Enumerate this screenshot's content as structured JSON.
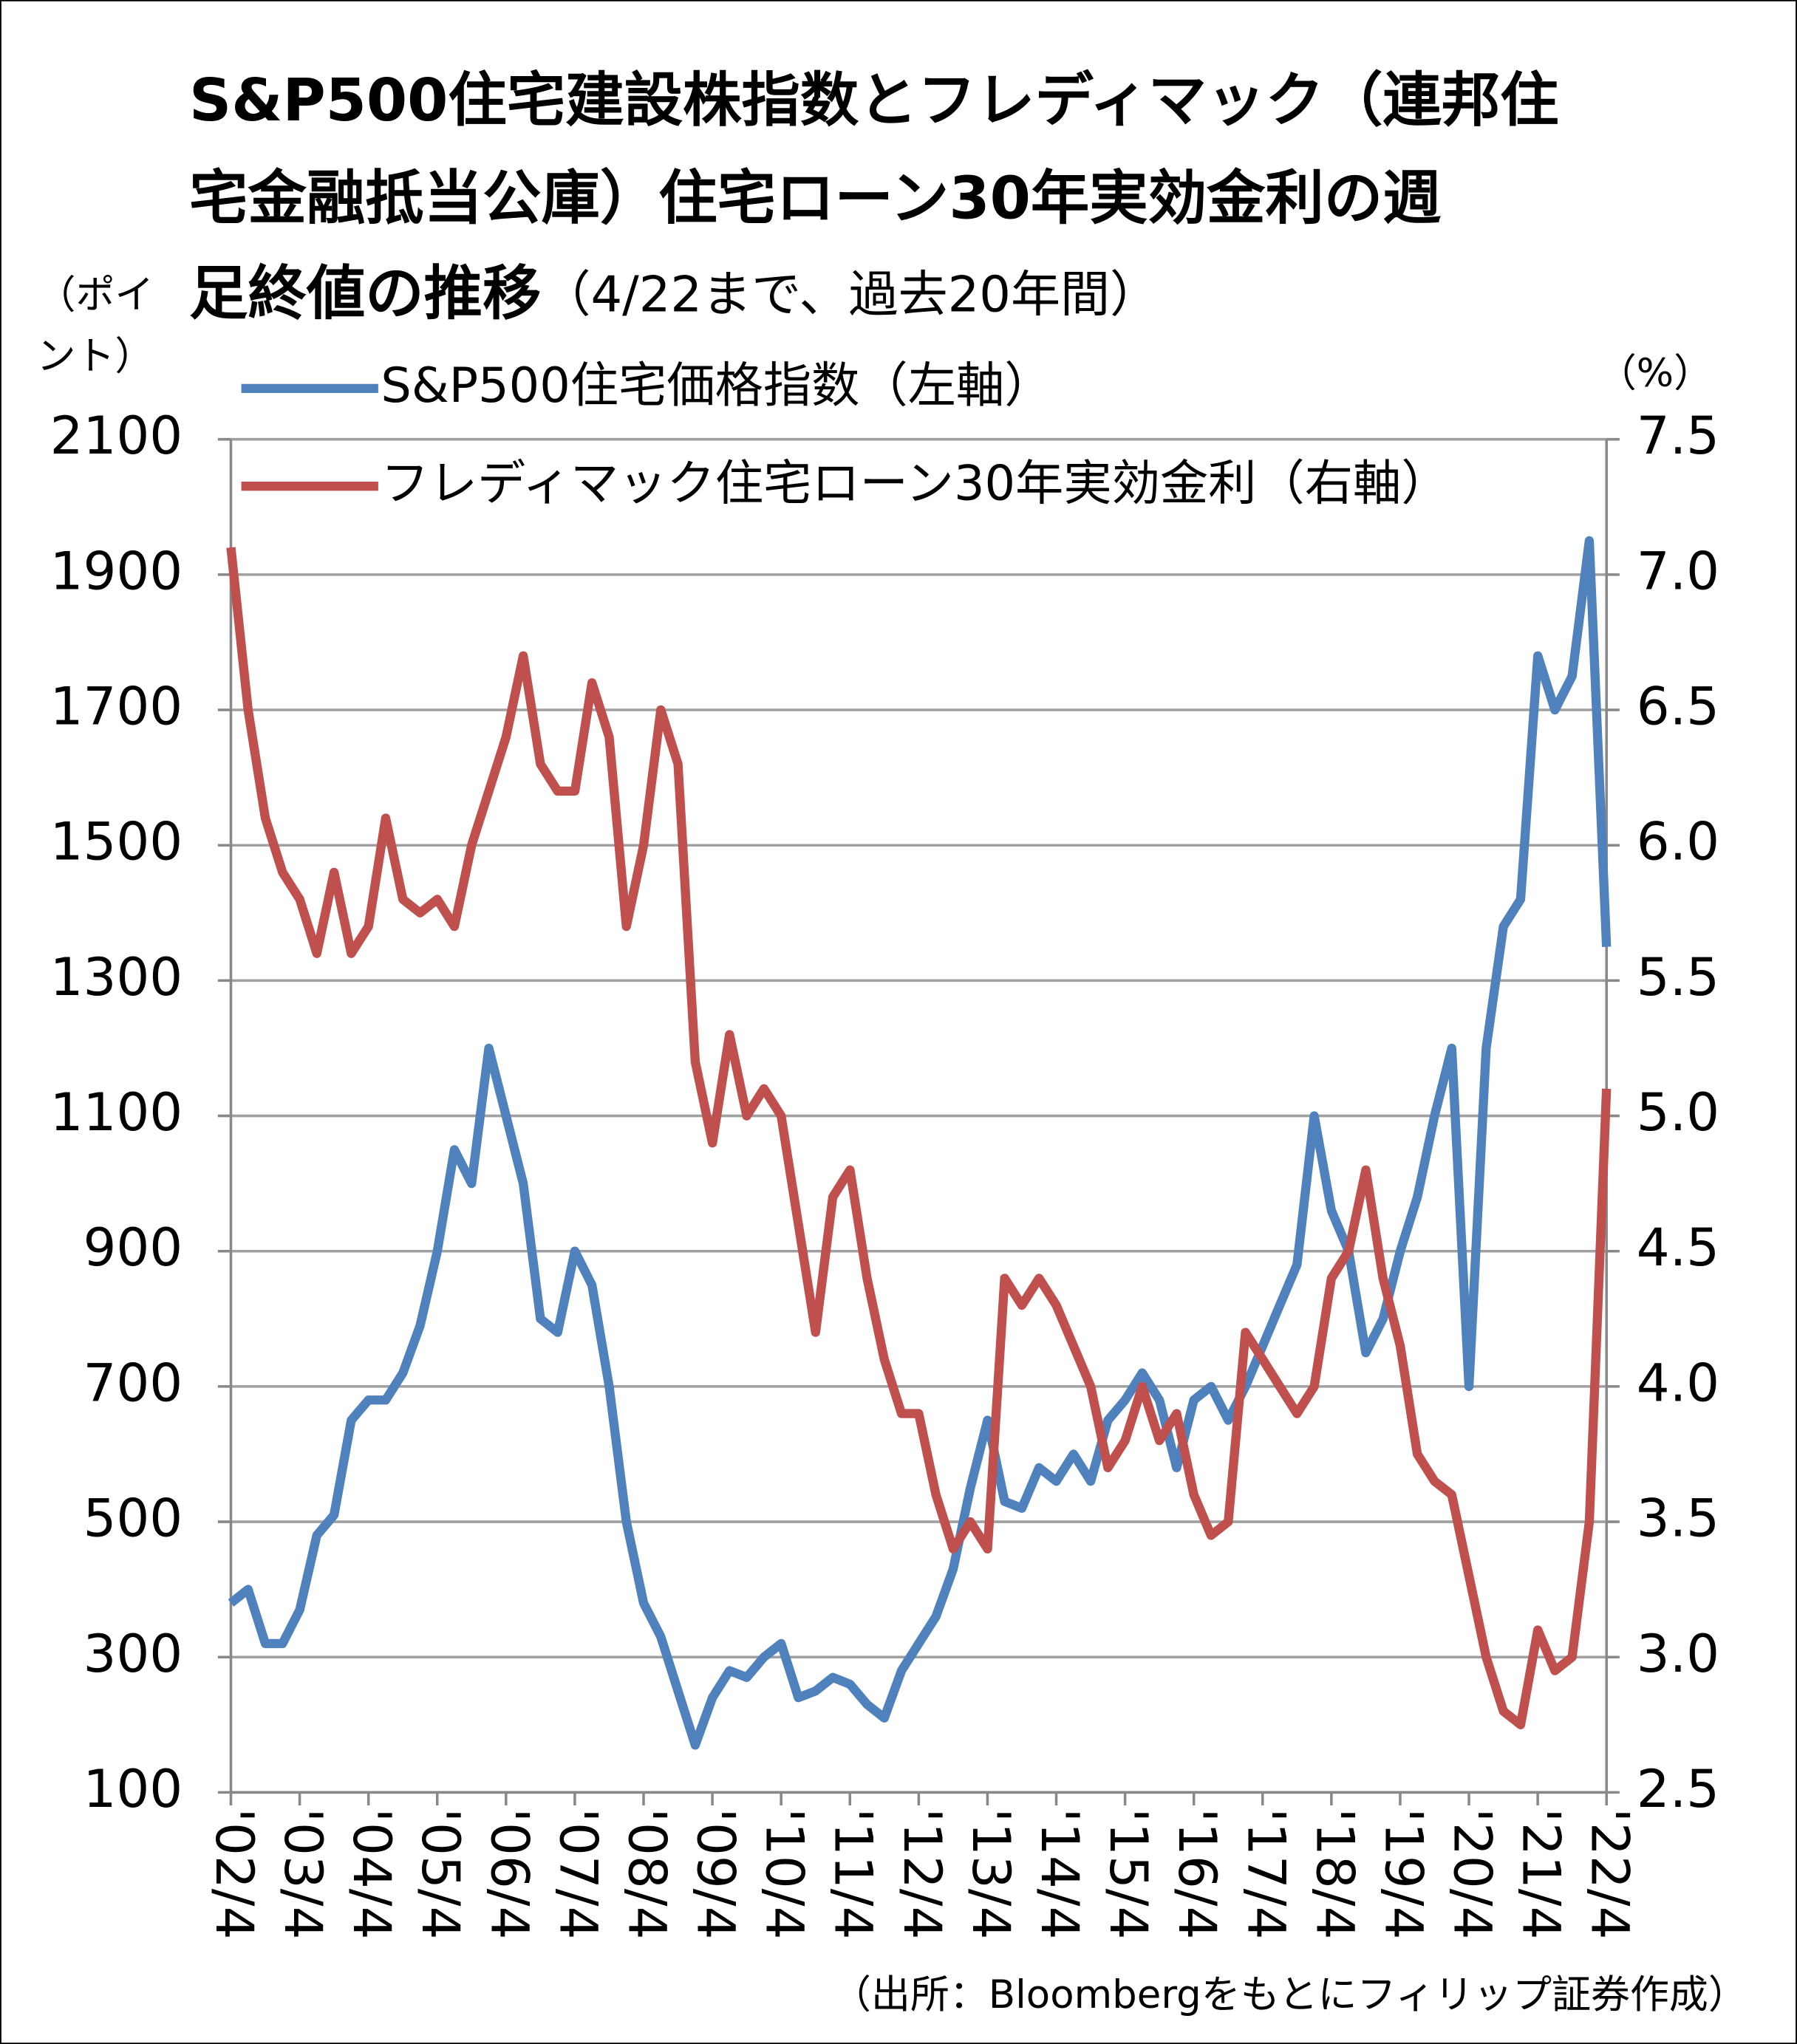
{
  "chart_data": {
    "type": "line",
    "title": [
      "S&P500住宅建設株指数とフレディマック（連邦住",
      "宅金融抵当公庫）住宅ローン30年実効金利の週",
      "足終値の推移"
    ],
    "subtitle": "（4/22まで、過去20年間）",
    "y_label": [
      "（ポイ",
      "ント）"
    ],
    "y2_label": "（%）",
    "source": "（出所：Bloombergをもとにフィリップ証券作成）",
    "categories": [
      "'02/4",
      null,
      null,
      null,
      "'03/4",
      null,
      null,
      null,
      "'04/4",
      null,
      null,
      null,
      "'05/4",
      null,
      null,
      null,
      "'06/4",
      null,
      null,
      null,
      "'07/4",
      null,
      null,
      null,
      "'08/4",
      null,
      null,
      null,
      "'09/4",
      null,
      null,
      null,
      "'10/4",
      null,
      null,
      null,
      "'11/4",
      null,
      null,
      null,
      "'12/4",
      null,
      null,
      null,
      "'13/4",
      null,
      null,
      null,
      "'14/4",
      null,
      null,
      null,
      "'15/4",
      null,
      null,
      null,
      "'16/4",
      null,
      null,
      null,
      "'17/4",
      null,
      null,
      null,
      "'18/4",
      null,
      null,
      null,
      "'19/4",
      null,
      null,
      null,
      "'20/4",
      null,
      null,
      null,
      "'21/4",
      null,
      null,
      null,
      "'22/4"
    ],
    "series": [
      {
        "name": "S&P500住宅価格指数（左軸）",
        "color": "#4f81bd",
        "values": [
          380,
          400,
          320,
          320,
          370,
          480,
          510,
          650,
          680,
          680,
          720,
          790,
          900,
          1050,
          1000,
          1200,
          1100,
          1000,
          800,
          780,
          900,
          850,
          700,
          500,
          380,
          330,
          250,
          170,
          240,
          280,
          270,
          300,
          320,
          240,
          250,
          270,
          260,
          230,
          210,
          280,
          320,
          360,
          430,
          550,
          650,
          530,
          520,
          580,
          560,
          600,
          560,
          650,
          680,
          720,
          680,
          580,
          680,
          700,
          650,
          700,
          760,
          820,
          880,
          1100,
          960,
          900,
          750,
          800,
          900,
          980,
          1100,
          1200,
          700,
          1200,
          1380,
          1420,
          1780,
          1700,
          1750,
          1950,
          1350
        ]
      },
      {
        "name": "フレディマック住宅ローン30年実効金利（右軸）",
        "color": "#c0504d",
        "axis": "y2",
        "values": [
          7.1,
          6.5,
          6.1,
          5.9,
          5.8,
          5.6,
          5.9,
          5.6,
          5.7,
          6.1,
          5.8,
          5.75,
          5.8,
          5.7,
          6.0,
          6.2,
          6.4,
          6.7,
          6.3,
          6.2,
          6.2,
          6.6,
          6.4,
          5.7,
          6.0,
          6.5,
          6.3,
          5.2,
          4.9,
          5.3,
          5.0,
          5.1,
          5.0,
          4.6,
          4.2,
          4.7,
          4.8,
          4.4,
          4.1,
          3.9,
          3.9,
          3.6,
          3.4,
          3.5,
          3.4,
          4.4,
          4.3,
          4.4,
          4.3,
          4.15,
          4.0,
          3.7,
          3.8,
          4.0,
          3.8,
          3.9,
          3.6,
          3.45,
          3.5,
          4.2,
          4.1,
          4.0,
          3.9,
          4.0,
          4.4,
          4.5,
          4.8,
          4.4,
          4.15,
          3.75,
          3.65,
          3.6,
          3.3,
          3.0,
          2.8,
          2.75,
          3.1,
          2.95,
          3.0,
          3.5,
          5.1
        ]
      }
    ],
    "ylim": [
      100,
      2100
    ],
    "yticks": [
      100,
      300,
      500,
      700,
      900,
      1100,
      1300,
      1500,
      1700,
      1900,
      2100
    ],
    "y2lim": [
      2.5,
      7.5
    ],
    "y2ticks": [
      2.5,
      {
        "value": 3,
        "label": "3.0"
      },
      3.5,
      {
        "value": 4,
        "label": "4.0"
      },
      4.5,
      {
        "value": 5,
        "label": "5.0"
      },
      5.5,
      {
        "value": 6,
        "label": "6.0"
      },
      6.5,
      {
        "value": 7,
        "label": "7.0"
      },
      7.5
    ],
    "grid": true,
    "legend": "top-left"
  }
}
